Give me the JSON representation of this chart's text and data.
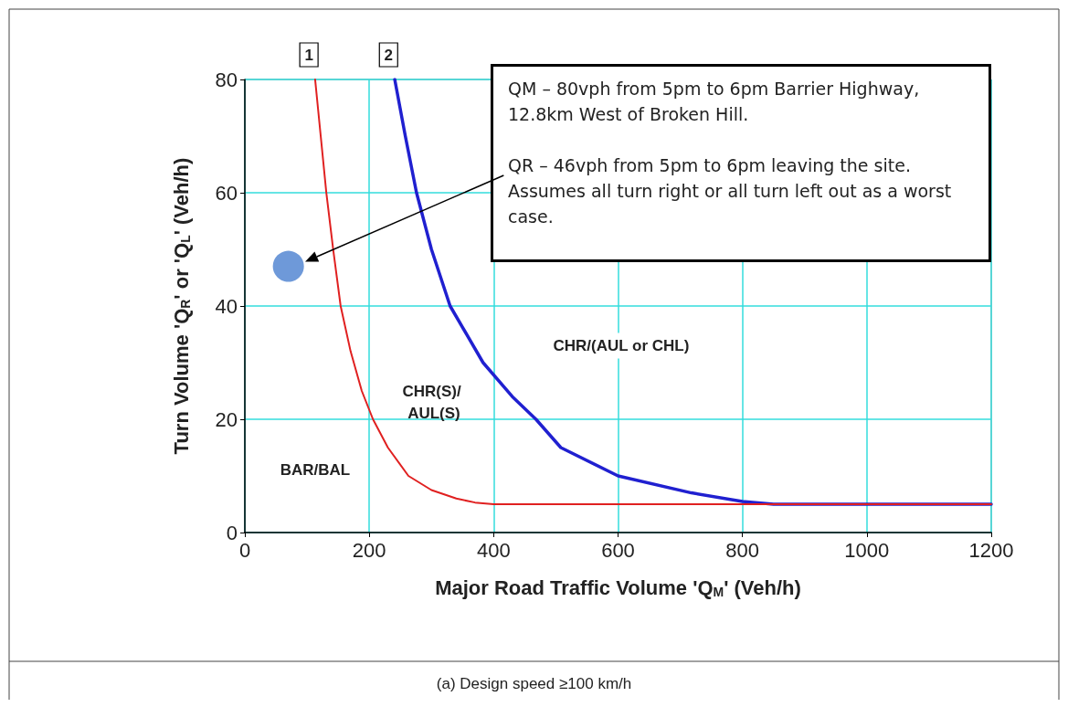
{
  "chart_data": {
    "type": "line",
    "xlabel": "Major Road Traffic Volume 'Q$_{M}$' (Veh/h)",
    "ylabel": "Turn Volume 'Q$_{R}$' or 'Q$_{L}$' (Veh/h)",
    "xlim": [
      0,
      1200
    ],
    "xticks": [
      0,
      200,
      400,
      600,
      800,
      1000,
      1200
    ],
    "ylim": [
      0,
      80
    ],
    "yticks": [
      0,
      20,
      40,
      60,
      80
    ],
    "grid": true,
    "marker": "none",
    "line_style": "solid",
    "series": [
      {
        "color": "#e02020",
        "x": [
          113,
          122,
          131,
          142,
          154,
          170,
          188,
          206,
          230,
          263,
          300,
          340,
          370,
          400,
          600,
          800,
          1000,
          1200
        ],
        "values": [
          80,
          70,
          60,
          50,
          40,
          32,
          25,
          20,
          15,
          10,
          7.5,
          6,
          5.3,
          5,
          5,
          5,
          5,
          5
        ]
      },
      {
        "color": "#2020d0",
        "x": [
          241,
          258,
          276,
          300,
          330,
          383,
          430,
          468,
          508,
          600,
          718,
          800,
          850,
          1000,
          1200
        ],
        "values": [
          80,
          70,
          60,
          50,
          40,
          30,
          24,
          20,
          15,
          10,
          7,
          5.5,
          5,
          5,
          5
        ]
      },
      {
        "type": "scatter",
        "marker": "circle",
        "color": "#4a80d0",
        "x": [
          70
        ],
        "values": [
          47
        ]
      }
    ],
    "annotations": [
      "QM – 80vph from 5pm to 6pm Barrier Highway, 12.8km West of Broken Hill.",
      "QR – 46vph from 5pm to 6pm leaving the site. Assumes all turn right or all turn left out as a worst case.",
      "1",
      "2",
      "BAR/BAL",
      "CHR(S)/ AUL(S)",
      "CHR/(AUL or CHL)",
      "(a) Design speed ≥100 km/h"
    ]
  }
}
